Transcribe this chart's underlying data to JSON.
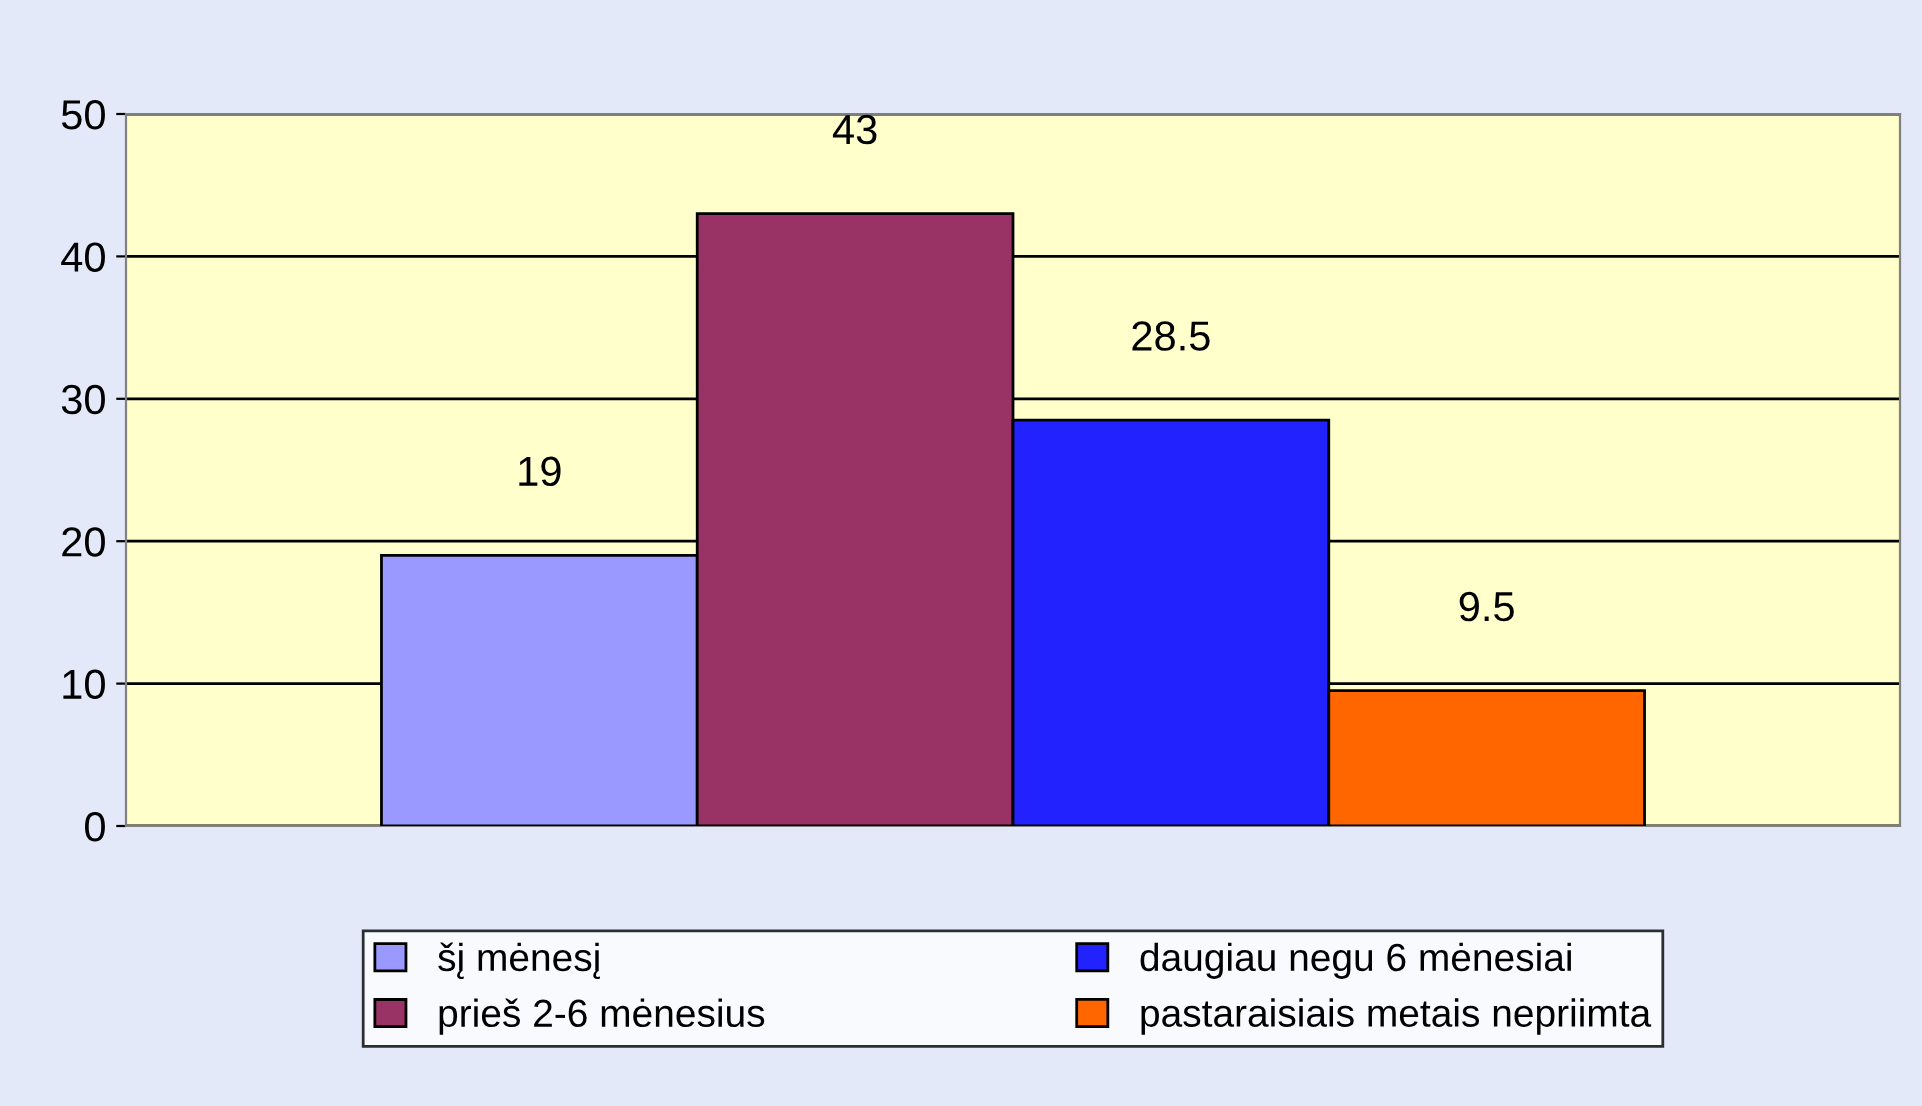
{
  "chart_data": {
    "type": "bar",
    "categories": [
      null
    ],
    "series": [
      {
        "name": "šį mėnesį",
        "color": "#9999ff",
        "values": [
          19
        ]
      },
      {
        "name": "prieš 2-6 mėnesius",
        "color": "#993366",
        "values": [
          43
        ]
      },
      {
        "name": "daugiau negu 6 mėnesiai",
        "color": "#2222ff",
        "values": [
          28.5
        ]
      },
      {
        "name": "pastaraisiais metais nepriimta",
        "color": "#ff6600",
        "values": [
          9.5
        ]
      }
    ],
    "ylim": [
      0,
      50
    ],
    "yticks": [
      0,
      10,
      20,
      30,
      40,
      50
    ],
    "grid": "y",
    "legend": "bottom",
    "data_labels": true
  }
}
